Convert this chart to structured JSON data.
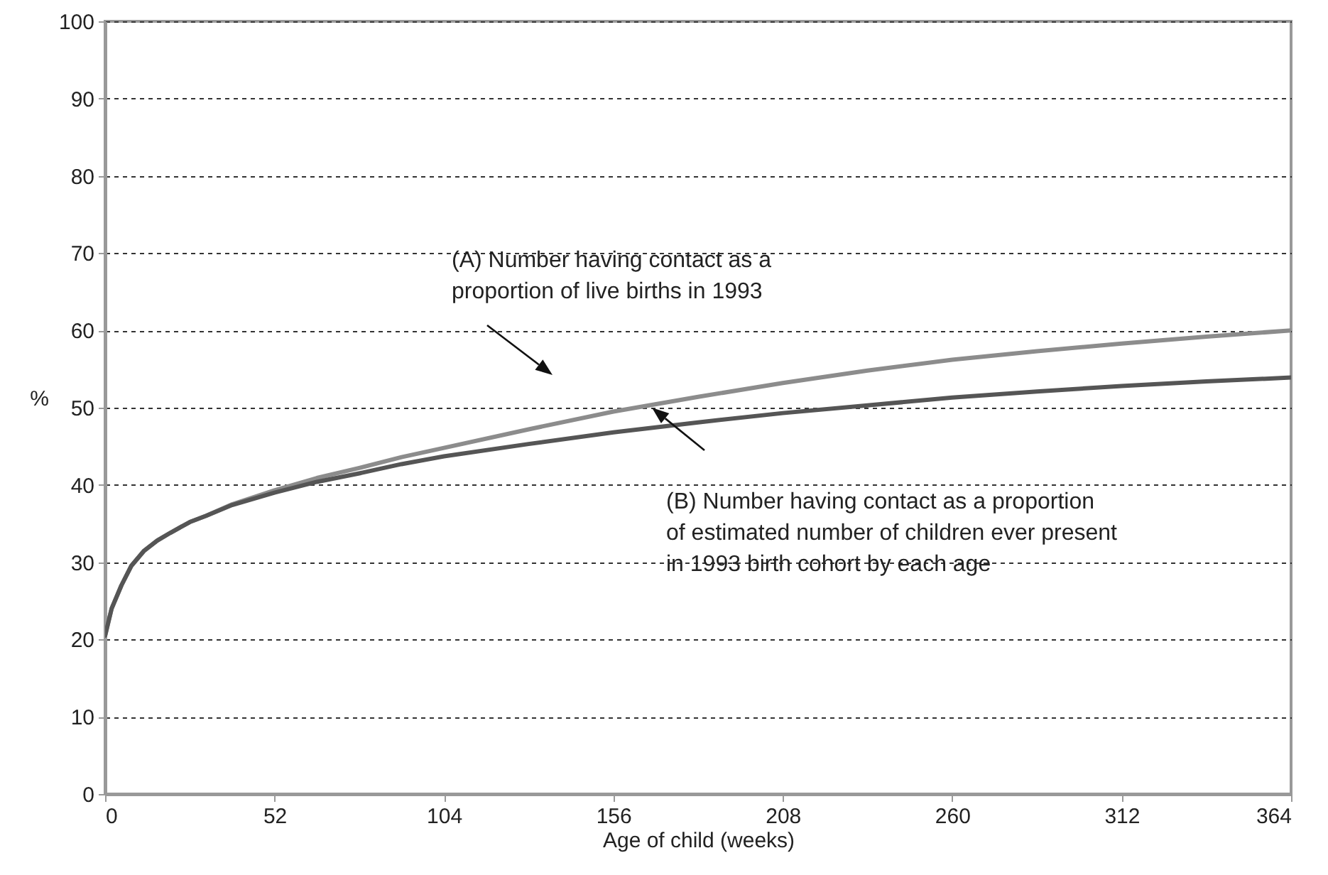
{
  "chart_data": {
    "type": "line",
    "xlabel": "Age of child (weeks)",
    "ylabel": "%",
    "x": [
      0,
      2,
      5,
      8,
      12,
      16,
      20,
      26,
      31,
      39,
      52,
      65,
      78,
      91,
      104,
      130,
      156,
      182,
      208,
      234,
      260,
      286,
      312,
      338,
      364
    ],
    "series": [
      {
        "color": "#8c8c8c",
        "values": [
          20.5,
          24,
          27,
          29.5,
          31.5,
          32.8,
          33.8,
          35.2,
          36,
          37.5,
          39.3,
          40.9,
          42.2,
          43.6,
          44.8,
          47.2,
          49.5,
          51.4,
          53.2,
          54.8,
          56.2,
          57.3,
          58.3,
          59.2,
          60
        ]
      },
      {
        "color": "#555555",
        "values": [
          20.5,
          24,
          27,
          29.5,
          31.5,
          32.8,
          33.8,
          35.2,
          36,
          37.4,
          39,
          40.4,
          41.5,
          42.7,
          43.7,
          45.3,
          46.8,
          48.1,
          49.3,
          50.3,
          51.3,
          52.1,
          52.8,
          53.4,
          53.9
        ]
      }
    ],
    "annotations": [
      "(A) Number having contact as a proportion of live births in 1993",
      "(B) Number having contact as a proportion of estimated number of children ever present in 1993 birth cohort by each age"
    ],
    "xlim": [
      0,
      364
    ],
    "xticks": [
      0,
      52,
      104,
      156,
      208,
      260,
      312,
      364
    ],
    "ylim": [
      0,
      100
    ],
    "yticks": [
      0,
      10,
      20,
      30,
      40,
      50,
      60,
      70,
      80,
      90,
      100
    ],
    "grid": "y"
  }
}
